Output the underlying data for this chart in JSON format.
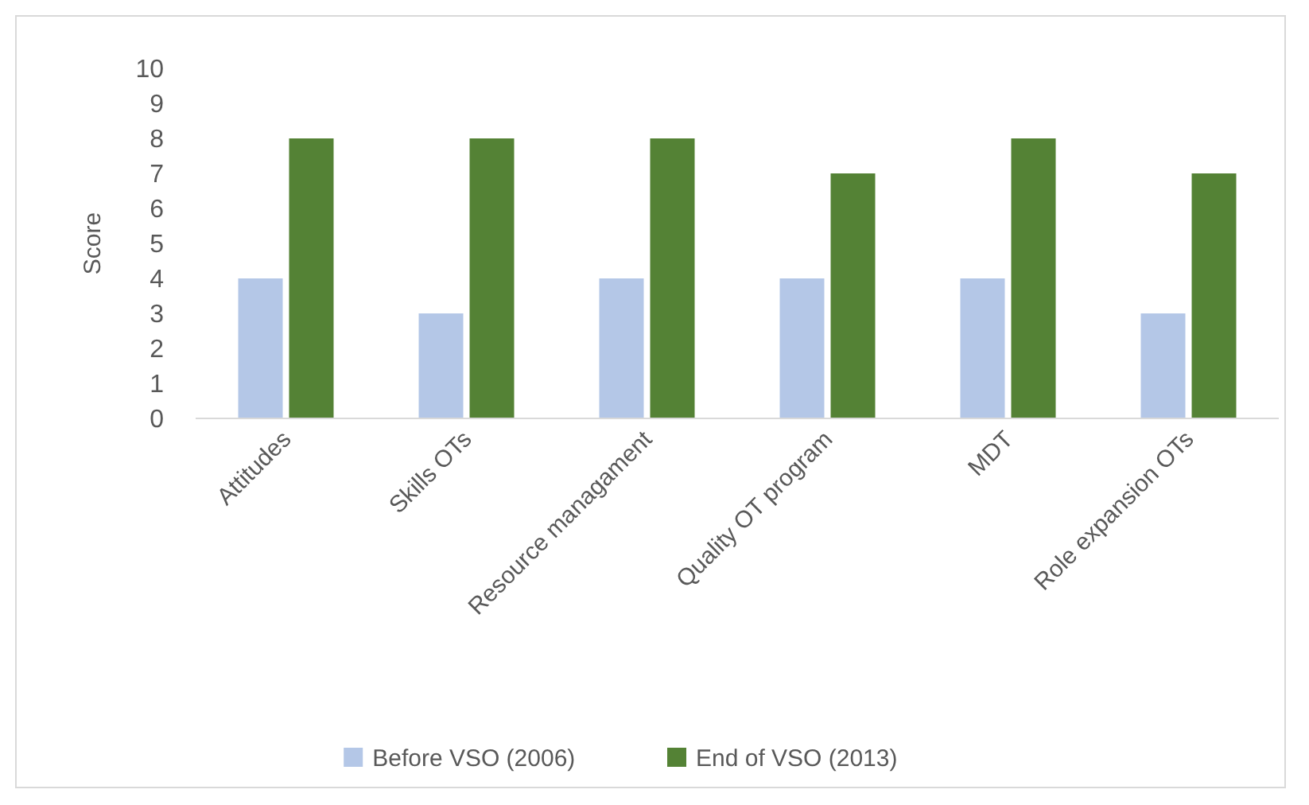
{
  "chart_data": {
    "type": "bar",
    "ylabel": "Score",
    "categories": [
      "Attitudes",
      "Skills OTs",
      "Resource managament",
      "Quality OT program",
      "MDT",
      "Role expansion OTs"
    ],
    "series": [
      {
        "name": "Before VSO (2006)",
        "color": "#b4c7e7",
        "values": [
          4,
          3,
          4,
          4,
          4,
          3
        ]
      },
      {
        "name": "End of VSO (2013)",
        "color": "#548235",
        "values": [
          8,
          8,
          8,
          7,
          8,
          7
        ]
      }
    ],
    "ylim": [
      0,
      10
    ],
    "yticks": [
      0,
      1,
      2,
      3,
      4,
      5,
      6,
      7,
      8,
      9,
      10
    ],
    "grid": false,
    "legend": "bottom"
  }
}
